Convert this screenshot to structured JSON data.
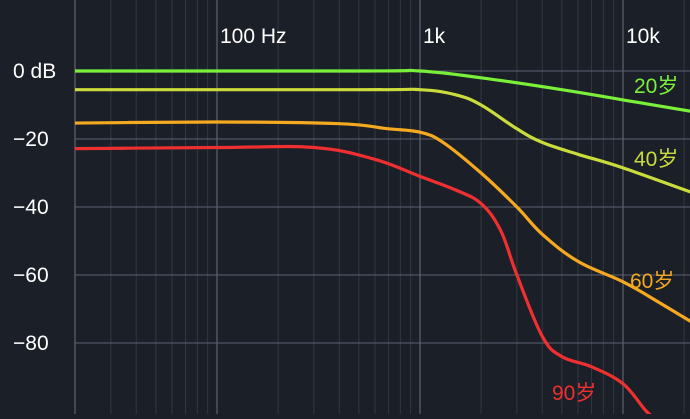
{
  "chart_data": {
    "type": "line",
    "x_scale": "log",
    "xlim": [
      10,
      25000
    ],
    "ylim": [
      -110,
      10
    ],
    "x_ticks": [
      {
        "value": 100,
        "label": "100 Hz"
      },
      {
        "value": 1000,
        "label": "1k"
      },
      {
        "value": 10000,
        "label": "10k"
      }
    ],
    "y_ticks": [
      {
        "value": 0,
        "label": "0 dB"
      },
      {
        "value": -20,
        "label": "−20"
      },
      {
        "value": -40,
        "label": "−40"
      },
      {
        "value": -60,
        "label": "−60"
      },
      {
        "value": -80,
        "label": "−80"
      }
    ],
    "grid": true,
    "series": [
      {
        "name": "20岁",
        "color": "#7af03a",
        "points": [
          [
            10,
            0
          ],
          [
            500,
            0
          ],
          [
            1000,
            0
          ],
          [
            2000,
            -2
          ],
          [
            5000,
            -5.5
          ],
          [
            10000,
            -8.5
          ],
          [
            25000,
            -12.5
          ]
        ]
      },
      {
        "name": "40岁",
        "color": "#c9dc3c",
        "points": [
          [
            10,
            -5.5
          ],
          [
            500,
            -5.5
          ],
          [
            1000,
            -5.5
          ],
          [
            1500,
            -7
          ],
          [
            2000,
            -10
          ],
          [
            3000,
            -17
          ],
          [
            4000,
            -21
          ],
          [
            6000,
            -24.5
          ],
          [
            10000,
            -28.5
          ],
          [
            25000,
            -37
          ]
        ]
      },
      {
        "name": "60岁",
        "color": "#f5a920",
        "points": [
          [
            10,
            -15.5
          ],
          [
            100,
            -15
          ],
          [
            400,
            -15.5
          ],
          [
            700,
            -17
          ],
          [
            1000,
            -18
          ],
          [
            1300,
            -21
          ],
          [
            2000,
            -30
          ],
          [
            3000,
            -40
          ],
          [
            4000,
            -48
          ],
          [
            6000,
            -56
          ],
          [
            10000,
            -62
          ],
          [
            15000,
            -68
          ],
          [
            25000,
            -76
          ]
        ]
      },
      {
        "name": "90岁",
        "color": "#f03030",
        "points": [
          [
            10,
            -23
          ],
          [
            100,
            -22.5
          ],
          [
            300,
            -22.5
          ],
          [
            600,
            -26
          ],
          [
            1000,
            -31
          ],
          [
            1500,
            -35
          ],
          [
            2000,
            -39
          ],
          [
            2500,
            -47
          ],
          [
            3000,
            -60
          ],
          [
            4000,
            -78
          ],
          [
            5000,
            -84
          ],
          [
            7000,
            -87
          ],
          [
            10000,
            -92
          ],
          [
            13000,
            -100
          ],
          [
            15000,
            -103
          ]
        ]
      }
    ],
    "annotations": [
      {
        "text": "20岁",
        "series": 0
      },
      {
        "text": "40岁",
        "series": 1
      },
      {
        "text": "60岁",
        "series": 2
      },
      {
        "text": "90岁",
        "series": 3
      }
    ]
  },
  "colors": {
    "background": "#1b1f27",
    "grid_major": "#5c6270",
    "grid_minor": "#353a45",
    "tick_text": "#ffffff"
  }
}
